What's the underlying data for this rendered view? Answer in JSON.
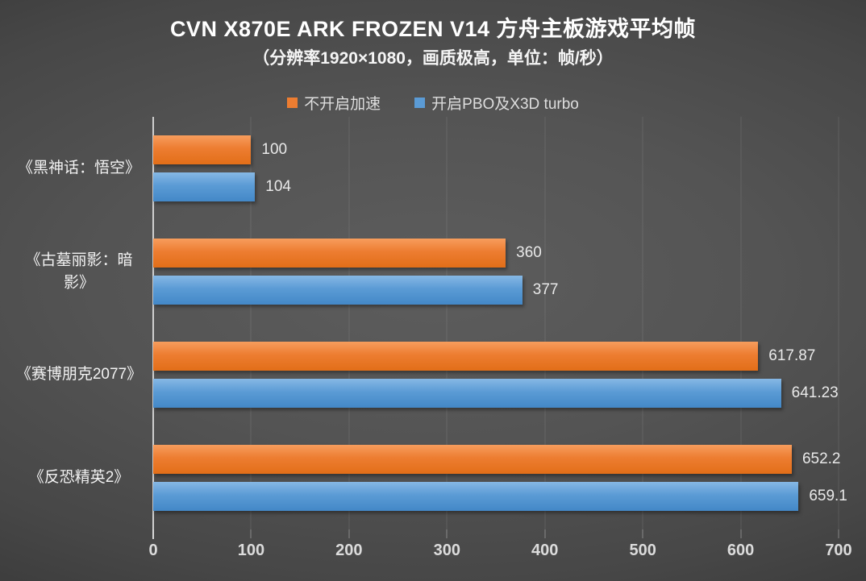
{
  "title": "CVN X870E ARK FROZEN V14 方舟主板游戏平均帧",
  "subtitle": "（分辨率1920×1080，画质极高，单位：帧/秒）",
  "colors": {
    "series_no_boost": "#ed7d31",
    "series_boost": "#5b9bd5",
    "background_center": "#565656",
    "background_edge": "#232323",
    "axis_line": "#cfcfcf",
    "text": "#f2f2f2"
  },
  "chart_data": {
    "type": "bar",
    "orientation": "horizontal",
    "title": "CVN X870E ARK FROZEN V14 方舟主板游戏平均帧",
    "subtitle": "（分辨率1920×1080，画质极高，单位：帧/秒）",
    "categories": [
      "《黑神话：悟空》",
      "《古墓丽影：暗影》",
      "《赛博朋克2077》",
      "《反恐精英2》"
    ],
    "series": [
      {
        "name": "不开启加速",
        "color": "#ed7d31",
        "values": [
          100,
          360,
          617.87,
          652.2
        ],
        "labels": [
          "100",
          "360",
          "617.87",
          "652.2"
        ]
      },
      {
        "name": "开启PBO及X3D turbo",
        "color": "#5b9bd5",
        "values": [
          104,
          377,
          641.23,
          659.1
        ],
        "labels": [
          "104",
          "377",
          "641.23",
          "659.1"
        ]
      }
    ],
    "xlim": [
      0,
      700
    ],
    "xticks": [
      0,
      100,
      200,
      300,
      400,
      500,
      600,
      700
    ],
    "xtick_labels": [
      "0",
      "100",
      "200",
      "300",
      "400",
      "500",
      "600",
      "700"
    ],
    "grid": true,
    "legend_position": "top",
    "unit": "帧/秒"
  }
}
